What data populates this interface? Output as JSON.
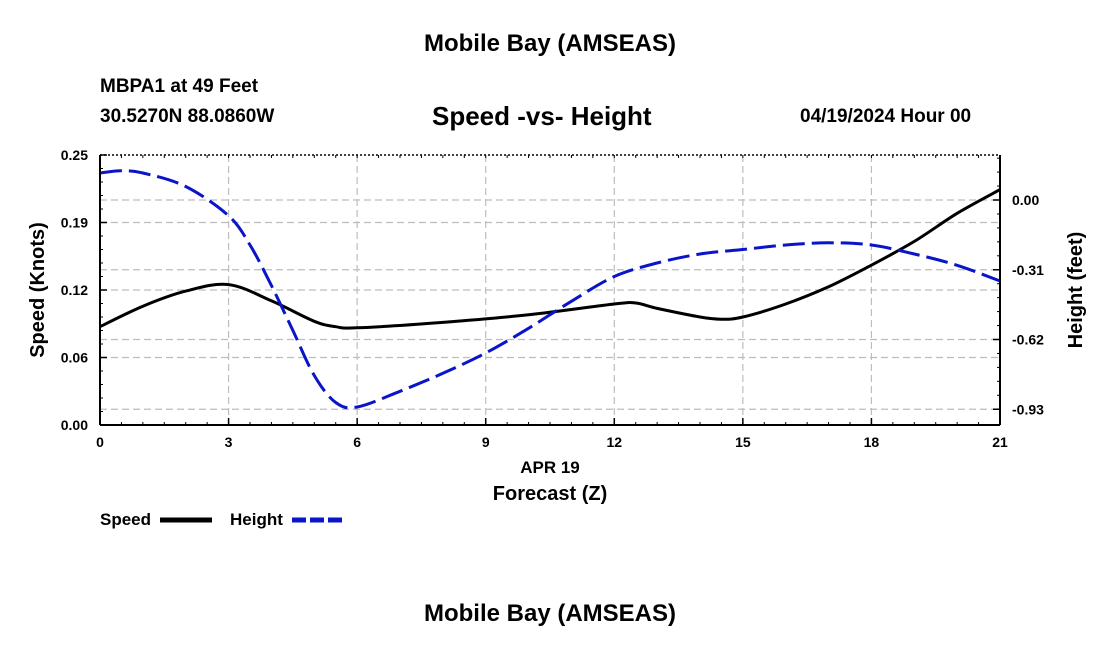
{
  "header": {
    "title": "Mobile Bay (AMSEAS)",
    "station": "MBPA1 at 49 Feet",
    "coords": "30.5270N  88.0860W",
    "subtitle": "Speed -vs- Height",
    "datetime": "04/19/2024 Hour 00"
  },
  "footer": {
    "title": "Mobile Bay (AMSEAS)"
  },
  "legend": {
    "speed_label": "Speed",
    "height_label": "Height"
  },
  "colors": {
    "speed": "#000000",
    "height": "#0a14c8",
    "grid": "#bdbdbd"
  },
  "chart_data": {
    "type": "line",
    "title": "Speed -vs- Height",
    "xlabel": "Forecast (Z)",
    "xdate": "APR 19",
    "ylabel": "Speed (Knots)",
    "y2label": "Height (feet)",
    "xlim": [
      0,
      21
    ],
    "ylim": [
      0,
      0.25
    ],
    "y2lim": [
      -1.0,
      0.2
    ],
    "x_ticks": [
      "0",
      "3",
      "6",
      "9",
      "12",
      "15",
      "18",
      "21"
    ],
    "y_ticks": [
      "0.00",
      "0.06",
      "0.12",
      "0.19",
      "0.25"
    ],
    "y_tick_values": [
      0,
      0.0625,
      0.125,
      0.1875,
      0.25
    ],
    "y2_ticks": [
      "-0.93",
      "-0.62",
      "-0.31",
      "0.00"
    ],
    "y2_tick_values": [
      -0.93,
      -0.62,
      -0.31,
      0.0
    ],
    "series": [
      {
        "name": "Speed",
        "axis": "left",
        "style": "solid",
        "x": [
          0,
          1,
          2,
          3,
          4,
          5,
          5.5,
          6,
          8,
          10,
          12,
          12.5,
          13,
          14,
          14.5,
          15,
          16,
          17,
          18,
          19,
          20,
          21
        ],
        "values": [
          0.091,
          0.11,
          0.124,
          0.13,
          0.115,
          0.096,
          0.091,
          0.09,
          0.095,
          0.102,
          0.112,
          0.113,
          0.108,
          0.1,
          0.098,
          0.1,
          0.112,
          0.128,
          0.148,
          0.17,
          0.196,
          0.218
        ]
      },
      {
        "name": "Height",
        "axis": "right",
        "style": "dashed",
        "x": [
          0,
          0.5,
          1,
          2,
          3,
          3.5,
          4,
          4.5,
          5,
          5.5,
          6,
          7,
          8,
          9,
          10,
          11,
          12,
          13,
          14,
          15,
          16,
          17,
          18,
          19,
          20,
          21
        ],
        "values": [
          0.12,
          0.13,
          0.12,
          0.06,
          -0.07,
          -0.2,
          -0.38,
          -0.58,
          -0.78,
          -0.9,
          -0.92,
          -0.85,
          -0.77,
          -0.68,
          -0.57,
          -0.45,
          -0.34,
          -0.28,
          -0.24,
          -0.22,
          -0.2,
          -0.19,
          -0.2,
          -0.24,
          -0.29,
          -0.36
        ]
      }
    ]
  }
}
